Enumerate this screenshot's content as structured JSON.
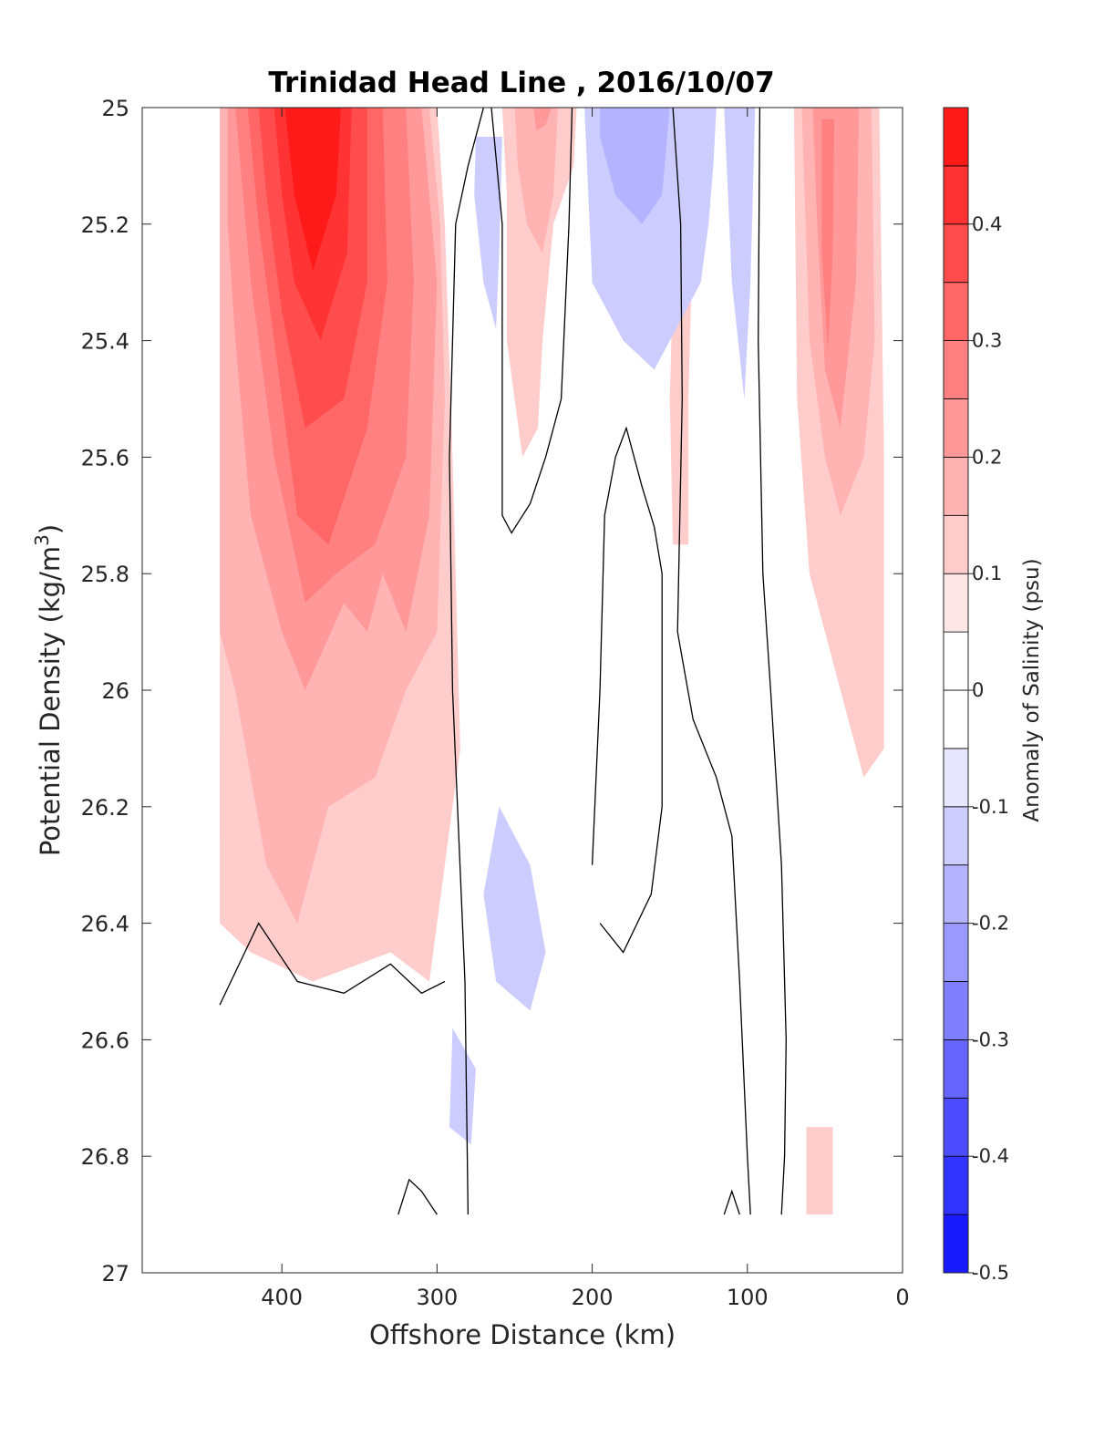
{
  "chart_data": {
    "type": "contour",
    "title": "Trinidad Head Line , 2016/10/07",
    "xlabel": "Offshore Distance (km)",
    "ylabel_main": "Potential Density (kg/m",
    "ylabel_sup": "3",
    "ylabel_close": ")",
    "xlim": [
      490,
      0
    ],
    "ylim": [
      25,
      27
    ],
    "x_ticks": [
      400,
      300,
      200,
      100,
      0
    ],
    "x_tick_labels": [
      "400",
      "300",
      "200",
      "100",
      "0"
    ],
    "y_ticks": [
      25,
      25.2,
      25.4,
      25.6,
      25.8,
      26,
      26.2,
      26.4,
      26.6,
      26.8,
      27
    ],
    "y_tick_labels": [
      "25",
      "25.2",
      "25.4",
      "25.6",
      "25.8",
      "26",
      "26.2",
      "26.4",
      "26.6",
      "26.8",
      "27"
    ],
    "colorbar": {
      "label": "Anomaly of Salinity (psu)",
      "range": [
        -0.5,
        0.5
      ],
      "step": 0.05,
      "ticks": [
        -0.5,
        -0.4,
        -0.3,
        -0.2,
        -0.1,
        0,
        0.1,
        0.2,
        0.3,
        0.4
      ],
      "tick_labels": [
        "-0.5",
        "-0.4",
        "-0.3",
        "-0.2",
        "-0.1",
        "0",
        "0.1",
        "0.2",
        "0.3",
        "0.4"
      ]
    },
    "regions": [
      {
        "level": 0.1,
        "points": [
          [
            440,
            25
          ],
          [
            300,
            25
          ],
          [
            295,
            25.2
          ],
          [
            290,
            25.6
          ],
          [
            285,
            26.1
          ],
          [
            305,
            26.5
          ],
          [
            330,
            26.45
          ],
          [
            380,
            26.5
          ],
          [
            420,
            26.45
          ],
          [
            440,
            26.4
          ]
        ]
      },
      {
        "level": 0.1,
        "points": [
          [
            440,
            26.08
          ],
          [
            430,
            26.1
          ],
          [
            428,
            26.2
          ],
          [
            440,
            26.25
          ]
        ]
      },
      {
        "level": 0.15,
        "points": [
          [
            440,
            25
          ],
          [
            305,
            25
          ],
          [
            298,
            25.2
          ],
          [
            295,
            25.5
          ],
          [
            300,
            25.9
          ],
          [
            320,
            26.0
          ],
          [
            340,
            26.15
          ],
          [
            370,
            26.2
          ],
          [
            390,
            26.4
          ],
          [
            410,
            26.3
          ],
          [
            430,
            26.0
          ],
          [
            440,
            25.9
          ]
        ]
      },
      {
        "level": 0.2,
        "points": [
          [
            435,
            25
          ],
          [
            310,
            25
          ],
          [
            300,
            25.3
          ],
          [
            305,
            25.7
          ],
          [
            320,
            25.9
          ],
          [
            335,
            25.8
          ],
          [
            345,
            25.9
          ],
          [
            360,
            25.85
          ],
          [
            385,
            26.0
          ],
          [
            400,
            25.9
          ],
          [
            420,
            25.7
          ],
          [
            430,
            25.4
          ],
          [
            435,
            25.2
          ]
        ]
      },
      {
        "level": 0.25,
        "points": [
          [
            430,
            25
          ],
          [
            320,
            25
          ],
          [
            315,
            25.3
          ],
          [
            320,
            25.6
          ],
          [
            340,
            25.75
          ],
          [
            365,
            25.8
          ],
          [
            385,
            25.85
          ],
          [
            405,
            25.6
          ],
          [
            420,
            25.3
          ]
        ]
      },
      {
        "level": 0.3,
        "points": [
          [
            422,
            25
          ],
          [
            335,
            25
          ],
          [
            332,
            25.3
          ],
          [
            345,
            25.55
          ],
          [
            370,
            25.75
          ],
          [
            390,
            25.7
          ],
          [
            405,
            25.4
          ],
          [
            415,
            25.2
          ]
        ]
      },
      {
        "level": 0.35,
        "points": [
          [
            415,
            25
          ],
          [
            345,
            25
          ],
          [
            345,
            25.3
          ],
          [
            360,
            25.5
          ],
          [
            385,
            25.55
          ],
          [
            400,
            25.35
          ],
          [
            410,
            25.15
          ]
        ]
      },
      {
        "level": 0.4,
        "points": [
          [
            405,
            25
          ],
          [
            355,
            25
          ],
          [
            358,
            25.25
          ],
          [
            375,
            25.4
          ],
          [
            392,
            25.3
          ],
          [
            400,
            25.15
          ]
        ]
      },
      {
        "level": 0.45,
        "points": [
          [
            398,
            25
          ],
          [
            362,
            25
          ],
          [
            365,
            25.15
          ],
          [
            380,
            25.28
          ],
          [
            392,
            25.15
          ]
        ]
      },
      {
        "level": 0.1,
        "points": [
          [
            258,
            25
          ],
          [
            210,
            25
          ],
          [
            212,
            25.1
          ],
          [
            225,
            25.2
          ],
          [
            232,
            25.4
          ],
          [
            235,
            25.55
          ],
          [
            245,
            25.6
          ],
          [
            255,
            25.4
          ],
          [
            255,
            25.15
          ]
        ]
      },
      {
        "level": 0.15,
        "points": [
          [
            250,
            25
          ],
          [
            222,
            25
          ],
          [
            225,
            25.15
          ],
          [
            232,
            25.25
          ],
          [
            242,
            25.2
          ],
          [
            248,
            25.1
          ]
        ]
      },
      {
        "level": 0.2,
        "points": [
          [
            238,
            25
          ],
          [
            226,
            25
          ],
          [
            230,
            25.03
          ],
          [
            236,
            25.04
          ]
        ]
      },
      {
        "level": 0.1,
        "points": [
          [
            145,
            25
          ],
          [
            130,
            25
          ],
          [
            135,
            25.2
          ],
          [
            138,
            25.5
          ],
          [
            138,
            25.75
          ],
          [
            148,
            25.75
          ],
          [
            150,
            25.5
          ]
        ]
      },
      {
        "level": 0.1,
        "points": [
          [
            70,
            25
          ],
          [
            15,
            25
          ],
          [
            12,
            25.6
          ],
          [
            12,
            26.1
          ],
          [
            25,
            26.15
          ],
          [
            45,
            25.95
          ],
          [
            60,
            25.8
          ],
          [
            68,
            25.5
          ]
        ]
      },
      {
        "level": 0.15,
        "points": [
          [
            65,
            25
          ],
          [
            20,
            25
          ],
          [
            18,
            25.4
          ],
          [
            25,
            25.6
          ],
          [
            40,
            25.7
          ],
          [
            50,
            25.6
          ],
          [
            60,
            25.4
          ]
        ]
      },
      {
        "level": 0.2,
        "points": [
          [
            58,
            25
          ],
          [
            28,
            25
          ],
          [
            30,
            25.3
          ],
          [
            40,
            25.55
          ],
          [
            50,
            25.45
          ],
          [
            55,
            25.2
          ]
        ]
      },
      {
        "level": 0.25,
        "points": [
          [
            52,
            25.02
          ],
          [
            44,
            25.02
          ],
          [
            45,
            25.25
          ],
          [
            48,
            25.42
          ],
          [
            52,
            25.25
          ]
        ]
      },
      {
        "level": 0.1,
        "points": [
          [
            62,
            26.75
          ],
          [
            45,
            26.75
          ],
          [
            45,
            26.9
          ],
          [
            62,
            26.9
          ]
        ]
      },
      {
        "level": -0.1,
        "points": [
          [
            275,
            25.05
          ],
          [
            258,
            25.05
          ],
          [
            260,
            25.25
          ],
          [
            262,
            25.38
          ],
          [
            270,
            25.3
          ],
          [
            276,
            25.15
          ]
        ]
      },
      {
        "level": -0.1,
        "points": [
          [
            205,
            25
          ],
          [
            120,
            25
          ],
          [
            122,
            25.1
          ],
          [
            125,
            25.2
          ],
          [
            130,
            25.3
          ],
          [
            140,
            25.35
          ],
          [
            160,
            25.45
          ],
          [
            180,
            25.4
          ],
          [
            200,
            25.3
          ]
        ]
      },
      {
        "level": -0.15,
        "points": [
          [
            195,
            25
          ],
          [
            150,
            25
          ],
          [
            155,
            25.15
          ],
          [
            168,
            25.2
          ],
          [
            185,
            25.15
          ],
          [
            195,
            25.05
          ]
        ]
      },
      {
        "level": -0.1,
        "points": [
          [
            115,
            25
          ],
          [
            95,
            25
          ],
          [
            98,
            25.3
          ],
          [
            102,
            25.5
          ],
          [
            110,
            25.3
          ]
        ]
      },
      {
        "level": -0.1,
        "points": [
          [
            260,
            26.2
          ],
          [
            240,
            26.3
          ],
          [
            230,
            26.45
          ],
          [
            240,
            26.55
          ],
          [
            262,
            26.5
          ],
          [
            270,
            26.35
          ]
        ]
      },
      {
        "level": -0.1,
        "points": [
          [
            290,
            26.58
          ],
          [
            275,
            26.65
          ],
          [
            278,
            26.78
          ],
          [
            292,
            26.75
          ]
        ]
      }
    ],
    "zero_contours": [
      [
        [
          270,
          25
        ],
        [
          280,
          25.1
        ],
        [
          288,
          25.2
        ],
        [
          292,
          25.6
        ],
        [
          290,
          26.0
        ],
        [
          282,
          26.5
        ],
        [
          280,
          26.9
        ]
      ],
      [
        [
          265,
          25
        ],
        [
          258,
          25.2
        ],
        [
          258,
          25.7
        ],
        [
          252,
          25.73
        ],
        [
          240,
          25.68
        ],
        [
          230,
          25.6
        ],
        [
          220,
          25.5
        ],
        [
          215,
          25.2
        ],
        [
          213,
          25
        ]
      ],
      [
        [
          148,
          25
        ],
        [
          143,
          25.2
        ],
        [
          142,
          25.5
        ],
        [
          145,
          25.9
        ],
        [
          135,
          26.05
        ],
        [
          120,
          26.15
        ],
        [
          110,
          26.25
        ],
        [
          105,
          26.5
        ],
        [
          100,
          26.8
        ],
        [
          98,
          26.9
        ]
      ],
      [
        [
          92,
          25
        ],
        [
          93,
          25.4
        ],
        [
          90,
          25.8
        ],
        [
          85,
          26.0
        ],
        [
          78,
          26.3
        ],
        [
          75,
          26.6
        ],
        [
          76,
          26.8
        ],
        [
          78,
          26.9
        ]
      ],
      [
        [
          200,
          26.3
        ],
        [
          195,
          26.0
        ],
        [
          192,
          25.7
        ],
        [
          185,
          25.6
        ],
        [
          178,
          25.55
        ],
        [
          168,
          25.65
        ],
        [
          160,
          25.72
        ],
        [
          155,
          25.8
        ],
        [
          155,
          26.2
        ],
        [
          162,
          26.35
        ],
        [
          180,
          26.45
        ],
        [
          195,
          26.4
        ]
      ],
      [
        [
          440,
          26.54
        ],
        [
          415,
          26.4
        ],
        [
          390,
          26.5
        ],
        [
          360,
          26.52
        ],
        [
          330,
          26.47
        ],
        [
          310,
          26.52
        ],
        [
          295,
          26.5
        ]
      ],
      [
        [
          325,
          26.9
        ],
        [
          318,
          26.84
        ],
        [
          310,
          26.86
        ],
        [
          300,
          26.9
        ]
      ],
      [
        [
          115,
          26.9
        ],
        [
          110,
          26.86
        ],
        [
          105,
          26.9
        ]
      ]
    ]
  }
}
